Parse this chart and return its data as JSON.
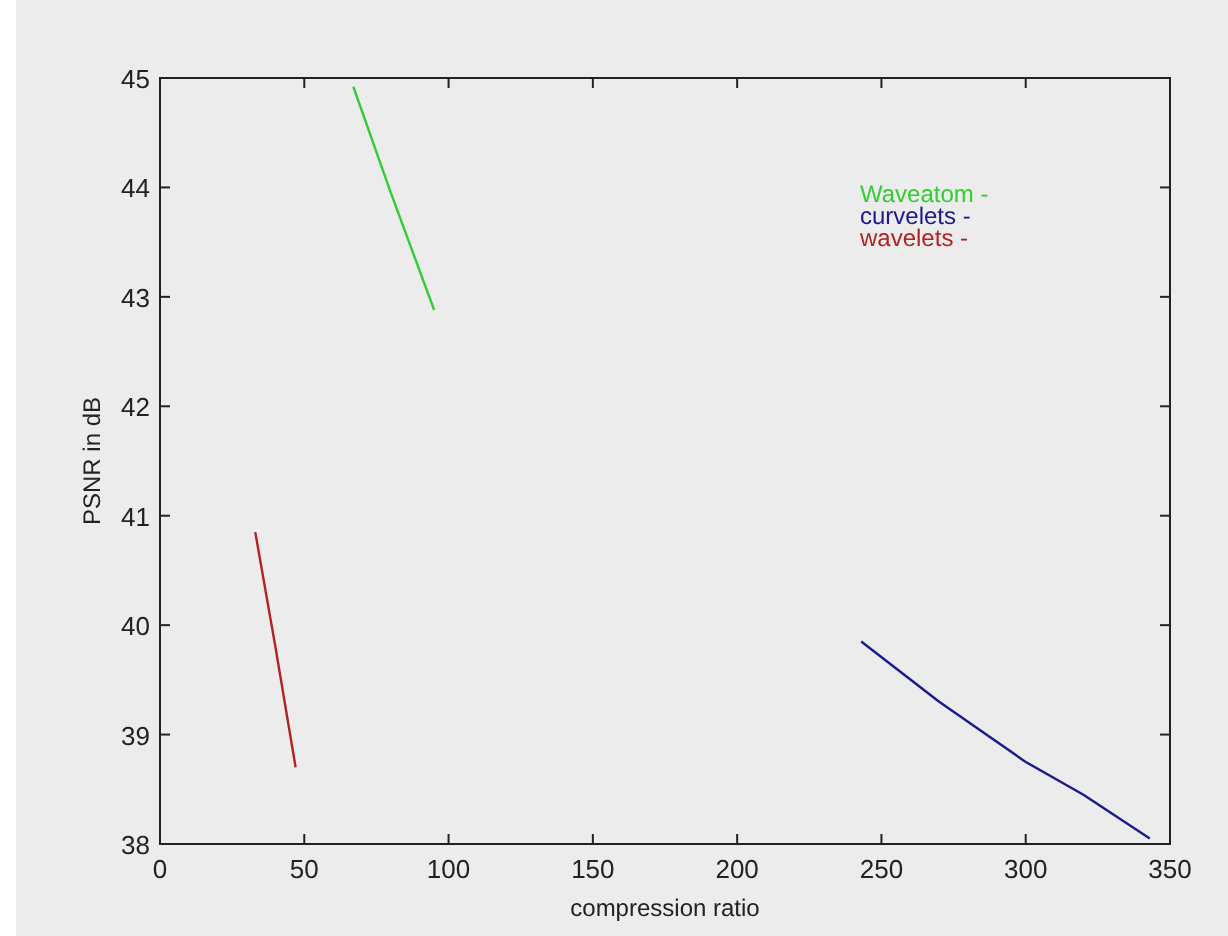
{
  "chart_data": {
    "type": "line",
    "xlabel": "compression ratio",
    "ylabel": "PSNR in dB",
    "xlim": [
      0,
      350
    ],
    "xticks": [
      0,
      50,
      100,
      150,
      200,
      250,
      300,
      350
    ],
    "ylim": [
      38,
      45
    ],
    "yticks": [
      38,
      39,
      40,
      41,
      42,
      43,
      44,
      45
    ],
    "grid": false,
    "legend": "top right",
    "marker": "none",
    "line_style": "solid",
    "series": [
      {
        "name": "Waveatom -",
        "color": "#33cc33",
        "x": [
          67,
          80,
          95
        ],
        "values": [
          44.92,
          43.95,
          42.88
        ]
      },
      {
        "name": "curvelets -",
        "color": "#1a1a8c",
        "x": [
          243,
          270,
          300,
          320,
          343
        ],
        "values": [
          39.85,
          39.3,
          38.75,
          38.45,
          38.05
        ]
      },
      {
        "name": "wavelets -",
        "color": "#b22222",
        "x": [
          33,
          40,
          47
        ],
        "values": [
          40.85,
          39.8,
          38.7
        ]
      }
    ]
  }
}
